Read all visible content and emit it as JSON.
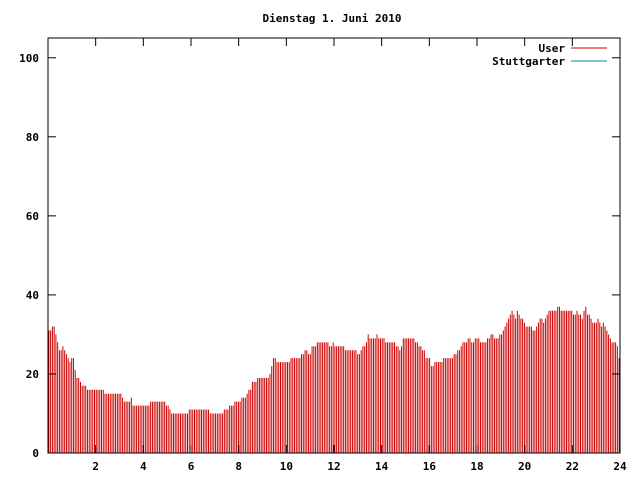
{
  "chart_data": {
    "type": "bar",
    "title": "Dienstag 1. Juni 2010",
    "xlabel": "",
    "ylabel": "",
    "xlim": [
      0,
      24
    ],
    "ylim": [
      0,
      105
    ],
    "x_ticks": [
      2,
      4,
      6,
      8,
      10,
      12,
      14,
      16,
      18,
      20,
      22,
      24
    ],
    "x_tick_labels": [
      "2",
      "4",
      "6",
      "8",
      "10",
      "12",
      "14",
      "16",
      "18",
      "20",
      "22",
      "24"
    ],
    "y_ticks": [
      0,
      20,
      40,
      60,
      80,
      100
    ],
    "y_tick_labels": [
      "0",
      "20",
      "40",
      "60",
      "80",
      "100"
    ],
    "grid": false,
    "legend_position": "top-right",
    "series": [
      {
        "name": "User",
        "color": "#cc0000",
        "style": "impulses",
        "values": [
          31,
          31,
          32,
          32,
          30,
          28,
          26,
          26,
          27,
          26,
          25,
          24,
          23,
          24,
          24,
          21,
          19,
          19,
          18,
          17,
          17,
          17,
          16,
          16,
          16,
          16,
          16,
          16,
          16,
          16,
          16,
          16,
          15,
          15,
          15,
          15,
          15,
          15,
          15,
          15,
          15,
          15,
          14,
          13,
          13,
          13,
          13,
          14,
          12,
          12,
          12,
          12,
          12,
          12,
          12,
          12,
          12,
          12,
          13,
          13,
          13,
          13,
          13,
          13,
          13,
          13,
          13,
          12,
          12,
          11,
          10,
          10,
          10,
          10,
          10,
          10,
          10,
          10,
          10,
          10,
          11,
          11,
          11,
          11,
          11,
          11,
          11,
          11,
          11,
          11,
          11,
          11,
          10,
          10,
          10,
          10,
          10,
          10,
          10,
          10,
          11,
          11,
          11,
          12,
          12,
          12,
          13,
          13,
          13,
          13,
          14,
          14,
          14,
          15,
          16,
          16,
          18,
          18,
          18,
          19,
          19,
          19,
          19,
          19,
          19,
          19,
          20,
          22,
          24,
          24,
          23,
          23,
          23,
          23,
          23,
          23,
          23,
          23,
          24,
          24,
          24,
          24,
          24,
          24,
          25,
          25,
          26,
          26,
          25,
          25,
          27,
          27,
          27,
          28,
          28,
          28,
          28,
          28,
          28,
          28,
          27,
          27,
          28,
          27,
          27,
          27,
          27,
          27,
          27,
          26,
          26,
          26,
          26,
          26,
          26,
          26,
          25,
          25,
          26,
          27,
          27,
          28,
          30,
          29,
          29,
          29,
          29,
          30,
          29,
          29,
          29,
          29,
          28,
          28,
          28,
          28,
          28,
          28,
          27,
          27,
          26,
          27,
          29,
          29,
          29,
          29,
          29,
          29,
          29,
          28,
          28,
          27,
          27,
          26,
          26,
          24,
          24,
          24,
          22,
          22,
          23,
          23,
          23,
          23,
          23,
          24,
          24,
          24,
          24,
          24,
          24,
          25,
          25,
          26,
          26,
          27,
          28,
          28,
          28,
          29,
          29,
          28,
          28,
          29,
          29,
          29,
          28,
          28,
          28,
          28,
          29,
          29,
          30,
          30,
          29,
          29,
          29,
          30,
          30,
          31,
          32,
          33,
          34,
          35,
          36,
          35,
          34,
          36,
          35,
          34,
          34,
          33,
          32,
          32,
          32,
          32,
          31,
          31,
          32,
          33,
          34,
          34,
          33,
          34,
          35,
          36,
          36,
          36,
          36,
          36,
          37,
          37,
          36,
          36,
          36,
          36,
          36,
          36,
          36,
          35,
          35,
          36,
          35,
          35,
          34,
          36,
          37,
          35,
          35,
          34,
          33,
          33,
          33,
          34,
          33,
          32,
          33,
          32,
          31,
          30,
          29,
          28,
          28,
          28,
          27,
          24
        ]
      },
      {
        "name": "Stuttgarter",
        "color": "#008b8b",
        "style": "impulses",
        "values": []
      }
    ]
  }
}
